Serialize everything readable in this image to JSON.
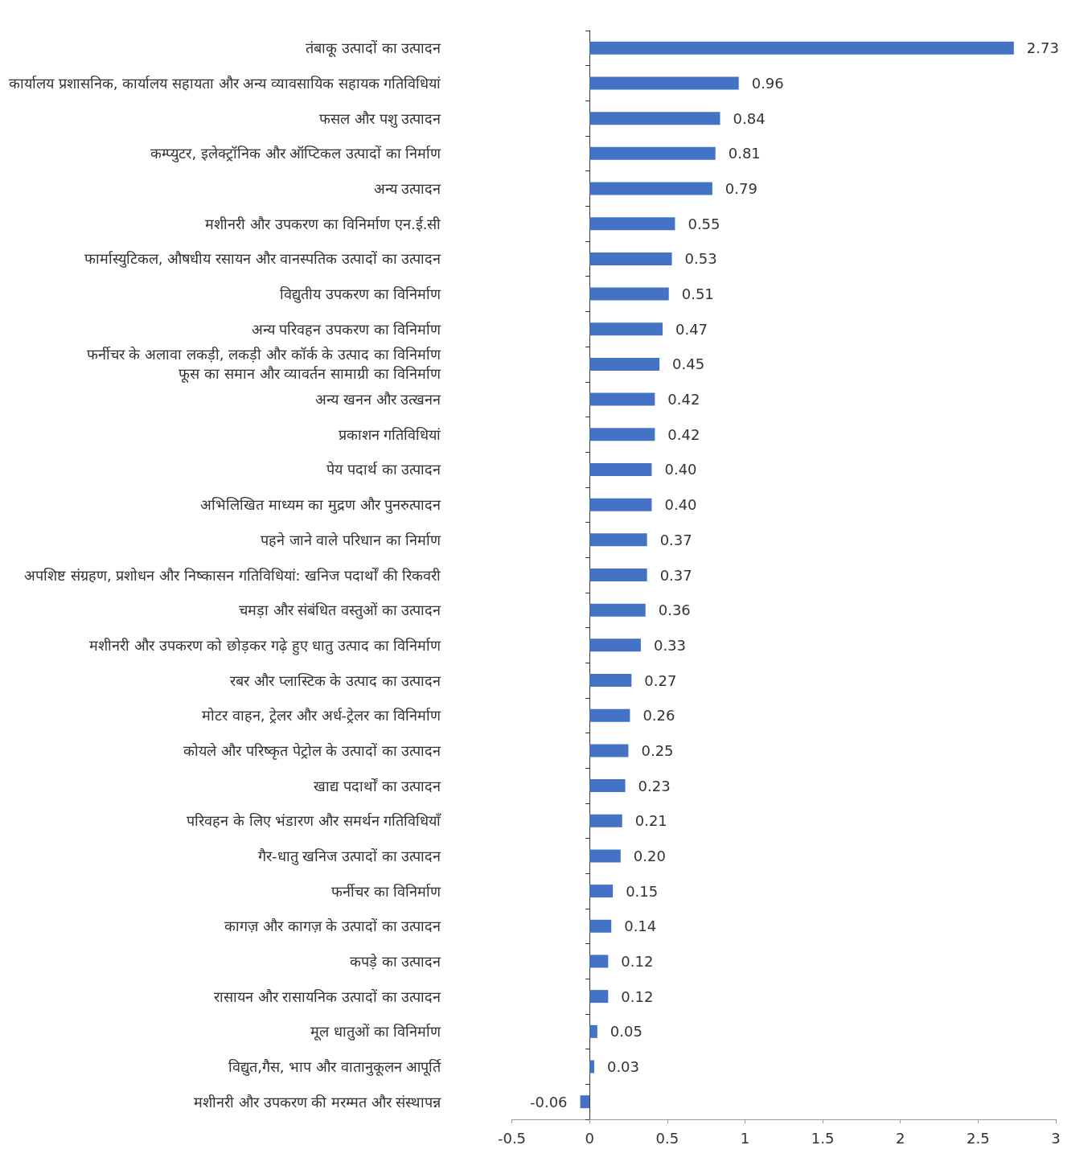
{
  "chart_data": {
    "type": "bar",
    "orientation": "horizontal",
    "color": "#4472c4",
    "categories": [
      "तंबाकू उत्पादों का उत्पादन",
      "कार्यालय प्रशासनिक, कार्यालय सहायता और अन्य व्यावसायिक सहायक गतिविधियां",
      "फसल और पशु उत्पादन",
      "कम्प्युटर, इलेक्ट्रॉनिक और ऑप्टिकल उत्पादों का निर्माण",
      "अन्य उत्पादन",
      "मशीनरी और उपकरण का विनिर्माण एन.ई.सी",
      "फार्मास्युटिकल, औषधीय रसायन और वानस्पतिक उत्पादों का उत्पादन",
      "विद्युतीय उपकरण का विनिर्माण",
      "अन्य परिवहन उपकरण का विनिर्माण",
      "फर्नीचर के अलावा लकड़ी, लकड़ी और कॉर्क के उत्पाद का विनिर्माण\nफूस का समान और व्यावर्तन सामाग्री का विनिर्माण",
      "अन्य खनन और उत्खनन",
      "प्रकाशन गतिविधियां",
      "पेय पदार्थ का उत्पादन",
      "अभिलिखित माध्यम का मुद्रण और पुनरुत्पादन",
      "पहने जाने वाले परिधान का निर्माण",
      "अपशिष्ट संग्रहण, प्रशोधन और निष्कासन गतिविधियां: खनिज पदार्थों की रिकवरी",
      "चमड़ा और संबंधित वस्तुओं का उत्पादन",
      "मशीनरी और उपकरण को छोड़कर गढ़े हुए धातु उत्पाद का विनिर्माण",
      "रबर और प्लास्टिक के उत्पाद का उत्पादन",
      "मोटर वाहन, ट्रेलर और अर्ध-ट्रेलर का विनिर्माण",
      "कोयले और परिष्कृत पेट्रोल के उत्पादों का उत्पादन",
      "खाद्य पदार्थों का उत्पादन",
      "परिवहन के लिए भंडारण और समर्थन गतिविधियाँ",
      "गैर-धातु खनिज उत्पादों का उत्पादन",
      "फर्नीचर का विनिर्माण",
      "कागज़ और कागज़ के उत्पादों का उत्पादन",
      "कपड़े का उत्पादन",
      "रासायन और रासायनिक उत्पादों का उत्पादन",
      "मूल धातुओं का विनिर्माण",
      "विद्युत,गैस, भाप और वातानुकूलन आपूर्ति",
      "मशीनरी और उपकरण की मरम्मत और संस्थापन्न"
    ],
    "values": [
      2.73,
      0.96,
      0.84,
      0.81,
      0.79,
      0.55,
      0.53,
      0.51,
      0.47,
      0.45,
      0.42,
      0.42,
      0.4,
      0.4,
      0.37,
      0.37,
      0.36,
      0.33,
      0.27,
      0.26,
      0.25,
      0.23,
      0.21,
      0.2,
      0.15,
      0.14,
      0.12,
      0.12,
      0.05,
      0.03,
      -0.06
    ],
    "value_labels": [
      "2.73",
      "0.96",
      "0.84",
      "0.81",
      "0.79",
      "0.55",
      "0.53",
      "0.51",
      "0.47",
      "0.45",
      "0.42",
      "0.42",
      "0.40",
      "0.40",
      "0.37",
      "0.37",
      "0.36",
      "0.33",
      "0.27",
      "0.26",
      "0.25",
      "0.23",
      "0.21",
      "0.20",
      "0.15",
      "0.14",
      "0.12",
      "0.12",
      "0.05",
      "0.03",
      "-0.06"
    ],
    "xlim": [
      -0.5,
      3
    ],
    "xticks": [
      -0.5,
      0,
      0.5,
      1,
      1.5,
      2,
      2.5,
      3
    ]
  }
}
